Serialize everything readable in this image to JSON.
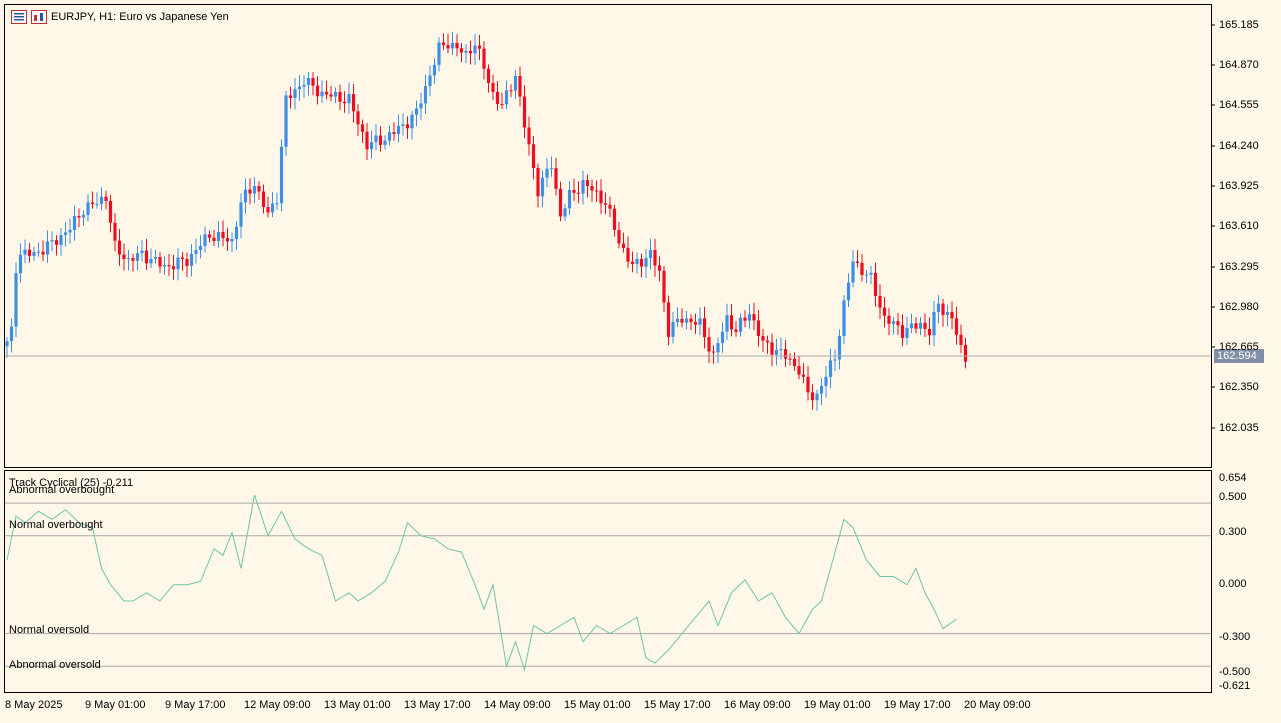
{
  "window": {
    "symbol_label": "EURJPY, H1:  Euro vs Japanese Yen",
    "current_price": "162.594"
  },
  "colors": {
    "background": "#fff8e8",
    "bull_candle": "#3d8fe6",
    "bear_candle": "#ee0c1e",
    "indicator_line": "#6ec4a6",
    "level_line": "#a9a9a9",
    "price_tag": "#7f8fa6"
  },
  "icons": [
    "chart-menu-icon",
    "chart-window-icon"
  ],
  "price_axis": [
    "165.185",
    "164.870",
    "164.555",
    "164.240",
    "163.925",
    "163.610",
    "163.295",
    "162.980",
    "162.665",
    "162.350",
    "162.035"
  ],
  "time_axis": [
    "8 May 2025",
    "9 May 01:00",
    "9 May 17:00",
    "12 May 09:00",
    "13 May 01:00",
    "13 May 17:00",
    "14 May 09:00",
    "15 May 01:00",
    "15 May 17:00",
    "16 May 09:00",
    "19 May 01:00",
    "19 May 17:00",
    "20 May 09:00"
  ],
  "indicator": {
    "title": "Track Cyclical (25) -0.211",
    "axis": [
      "0.654",
      "0.500",
      "0.300",
      "0.000",
      "-0.300",
      "-0.500",
      "-0.621"
    ],
    "levels": [
      {
        "label": "Abnormal overbought",
        "value": 0.5
      },
      {
        "label": "Normal overbought",
        "value": 0.3
      },
      {
        "label": "Normal oversold",
        "value": -0.3
      },
      {
        "label": "Abnormal oversold",
        "value": -0.5
      }
    ]
  },
  "chart_data": {
    "type": "candlestick",
    "price_ylim": [
      161.8,
      165.3
    ],
    "anchors": [
      [
        0,
        162.7
      ],
      [
        1,
        162.8
      ],
      [
        2,
        163.3
      ],
      [
        3,
        163.4
      ],
      [
        6,
        163.4
      ],
      [
        10,
        163.48
      ],
      [
        14,
        163.6
      ],
      [
        17,
        163.75
      ],
      [
        20,
        163.8
      ],
      [
        22,
        163.85
      ],
      [
        24,
        163.45
      ],
      [
        27,
        163.35
      ],
      [
        30,
        163.4
      ],
      [
        35,
        163.3
      ],
      [
        40,
        163.35
      ],
      [
        45,
        163.55
      ],
      [
        50,
        163.5
      ],
      [
        52,
        163.8
      ],
      [
        55,
        163.95
      ],
      [
        58,
        163.7
      ],
      [
        60,
        163.85
      ],
      [
        62,
        164.6
      ],
      [
        66,
        164.75
      ],
      [
        70,
        164.65
      ],
      [
        76,
        164.6
      ],
      [
        80,
        164.25
      ],
      [
        84,
        164.3
      ],
      [
        88,
        164.4
      ],
      [
        91,
        164.5
      ],
      [
        94,
        164.8
      ],
      [
        96,
        165.0
      ],
      [
        98,
        165.05
      ],
      [
        102,
        164.95
      ],
      [
        104,
        165.05
      ],
      [
        108,
        164.65
      ],
      [
        110,
        164.55
      ],
      [
        113,
        164.8
      ],
      [
        115,
        164.4
      ],
      [
        118,
        163.9
      ],
      [
        121,
        164.1
      ],
      [
        123,
        163.7
      ],
      [
        125,
        163.85
      ],
      [
        128,
        163.95
      ],
      [
        130,
        163.9
      ],
      [
        133,
        163.8
      ],
      [
        136,
        163.5
      ],
      [
        139,
        163.3
      ],
      [
        143,
        163.4
      ],
      [
        145,
        163.25
      ],
      [
        147,
        162.8
      ],
      [
        150,
        162.9
      ],
      [
        154,
        162.85
      ],
      [
        157,
        162.6
      ],
      [
        160,
        162.9
      ],
      [
        162,
        162.8
      ],
      [
        165,
        162.95
      ],
      [
        168,
        162.7
      ],
      [
        171,
        162.65
      ],
      [
        173,
        162.6
      ],
      [
        176,
        162.5
      ],
      [
        178,
        162.3
      ],
      [
        180,
        162.3
      ],
      [
        182,
        162.45
      ],
      [
        184,
        162.6
      ],
      [
        186,
        163.0
      ],
      [
        188,
        163.35
      ],
      [
        192,
        163.2
      ],
      [
        195,
        162.9
      ],
      [
        199,
        162.8
      ],
      [
        203,
        162.85
      ],
      [
        205,
        162.8
      ],
      [
        207,
        163.0
      ],
      [
        210,
        162.9
      ],
      [
        212,
        162.65
      ],
      [
        213,
        162.59
      ]
    ],
    "indicator_ylim": [
      -0.621,
      0.654
    ],
    "indicator_line": [
      [
        0,
        0.15
      ],
      [
        2,
        0.42
      ],
      [
        4,
        0.38
      ],
      [
        7,
        0.45
      ],
      [
        10,
        0.4
      ],
      [
        13,
        0.46
      ],
      [
        16,
        0.38
      ],
      [
        19,
        0.35
      ],
      [
        21,
        0.1
      ],
      [
        23,
        0.0
      ],
      [
        26,
        -0.1
      ],
      [
        28,
        -0.1
      ],
      [
        31,
        -0.05
      ],
      [
        34,
        -0.1
      ],
      [
        37,
        0.0
      ],
      [
        40,
        0.0
      ],
      [
        43,
        0.02
      ],
      [
        46,
        0.22
      ],
      [
        48,
        0.18
      ],
      [
        50,
        0.32
      ],
      [
        52,
        0.1
      ],
      [
        55,
        0.55
      ],
      [
        58,
        0.3
      ],
      [
        61,
        0.45
      ],
      [
        64,
        0.28
      ],
      [
        67,
        0.22
      ],
      [
        70,
        0.18
      ],
      [
        73,
        -0.1
      ],
      [
        76,
        -0.05
      ],
      [
        78,
        -0.1
      ],
      [
        81,
        -0.05
      ],
      [
        84,
        0.02
      ],
      [
        87,
        0.2
      ],
      [
        89,
        0.38
      ],
      [
        92,
        0.3
      ],
      [
        95,
        0.28
      ],
      [
        98,
        0.22
      ],
      [
        101,
        0.2
      ],
      [
        104,
        0.0
      ],
      [
        106,
        -0.15
      ],
      [
        108,
        0.0
      ],
      [
        111,
        -0.5
      ],
      [
        113,
        -0.35
      ],
      [
        115,
        -0.52
      ],
      [
        117,
        -0.25
      ],
      [
        120,
        -0.3
      ],
      [
        123,
        -0.25
      ],
      [
        126,
        -0.2
      ],
      [
        128,
        -0.35
      ],
      [
        131,
        -0.25
      ],
      [
        134,
        -0.3
      ],
      [
        137,
        -0.25
      ],
      [
        140,
        -0.2
      ],
      [
        142,
        -0.45
      ],
      [
        144,
        -0.48
      ],
      [
        147,
        -0.4
      ],
      [
        150,
        -0.3
      ],
      [
        153,
        -0.2
      ],
      [
        156,
        -0.1
      ],
      [
        158,
        -0.25
      ],
      [
        161,
        -0.05
      ],
      [
        164,
        0.03
      ],
      [
        167,
        -0.1
      ],
      [
        170,
        -0.05
      ],
      [
        173,
        -0.2
      ],
      [
        176,
        -0.3
      ],
      [
        179,
        -0.15
      ],
      [
        181,
        -0.1
      ],
      [
        184,
        0.2
      ],
      [
        186,
        0.4
      ],
      [
        188,
        0.35
      ],
      [
        191,
        0.15
      ],
      [
        194,
        0.05
      ],
      [
        197,
        0.05
      ],
      [
        200,
        0.0
      ],
      [
        202,
        0.1
      ],
      [
        204,
        -0.05
      ],
      [
        206,
        -0.15
      ],
      [
        208,
        -0.27
      ],
      [
        211,
        -0.21
      ]
    ]
  }
}
